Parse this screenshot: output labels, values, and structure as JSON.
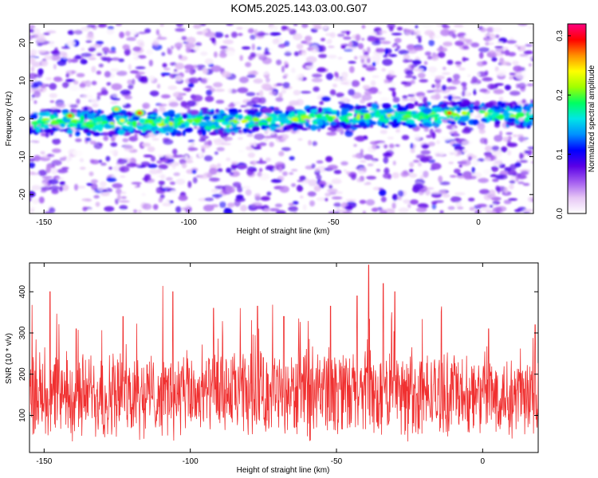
{
  "title": "KOM5.2025.143.03.00.G07",
  "chart_data": [
    {
      "type": "heatmap",
      "xlabel": "Height of straight line (km)",
      "ylabel": "Frequency (Hz)",
      "xlim": [
        -155,
        19
      ],
      "ylim": [
        -25,
        25
      ],
      "xticks": [
        -150,
        -100,
        -50,
        0
      ],
      "xtick_labels": [
        "-150",
        "-100",
        "-50",
        "0"
      ],
      "yticks": [
        -20,
        -10,
        0,
        10,
        20
      ],
      "ytick_labels": [
        "-20",
        "-10",
        "0",
        "10",
        "20"
      ],
      "colorbar": {
        "label": "Normalized spectral amplitude",
        "range": [
          0.0,
          0.32
        ],
        "ticks": [
          0.0,
          0.1,
          0.2,
          0.3
        ],
        "tick_labels": [
          "0.0",
          "0.1",
          "0.2",
          "0.3"
        ],
        "colors": [
          "#ffffff",
          "#e6c6f5",
          "#a35cf0",
          "#5a00e6",
          "#0000ff",
          "#0090ff",
          "#00e6e6",
          "#00ff60",
          "#a0ff00",
          "#ffff00",
          "#ff9000",
          "#ff0000",
          "#ff0080"
        ]
      },
      "band": {
        "center_hz": 0,
        "half_width_hz": 3
      },
      "peaks": [
        {
          "x": -141,
          "y": 0.8,
          "value": 0.28
        },
        {
          "x": -125,
          "y": 2.5,
          "value": 0.25
        },
        {
          "x": -117,
          "y": 1.5,
          "value": 0.3
        },
        {
          "x": -123,
          "y": -0.5,
          "value": 0.24
        },
        {
          "x": -10,
          "y": 1.5,
          "value": 0.29
        }
      ]
    },
    {
      "type": "line",
      "xlabel": "Height of straight line (km)",
      "ylabel": "SNR (10 * v/v)",
      "xlim": [
        -155,
        19
      ],
      "ylim": [
        10,
        470
      ],
      "xticks": [
        -150,
        -100,
        -50,
        0
      ],
      "xtick_labels": [
        "-150",
        "-100",
        "-50",
        "0"
      ],
      "yticks": [
        100,
        200,
        300,
        400
      ],
      "ytick_labels": [
        "100",
        "200",
        "300",
        "400"
      ],
      "color": "#f03030",
      "baseline_mean": 150,
      "spikes": [
        {
          "x": -148,
          "y": 400
        },
        {
          "x": -139,
          "y": 310
        },
        {
          "x": -123,
          "y": 340
        },
        {
          "x": -106,
          "y": 400
        },
        {
          "x": -92,
          "y": 360
        },
        {
          "x": -77,
          "y": 365
        },
        {
          "x": -68,
          "y": 340
        },
        {
          "x": -52,
          "y": 365
        },
        {
          "x": -43,
          "y": 390
        },
        {
          "x": -39,
          "y": 465
        },
        {
          "x": -34,
          "y": 420
        },
        {
          "x": -30,
          "y": 400
        },
        {
          "x": 2,
          "y": 310
        },
        {
          "x": 18,
          "y": 320
        }
      ]
    }
  ]
}
